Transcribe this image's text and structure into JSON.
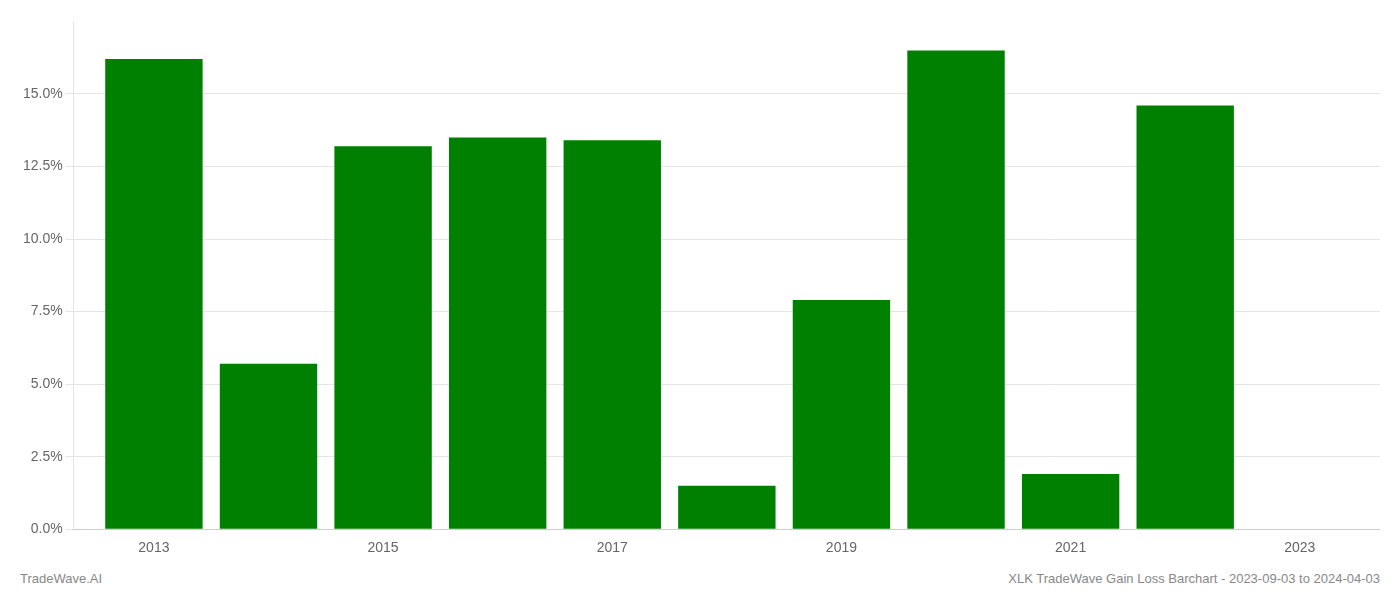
{
  "chart_data": {
    "type": "bar",
    "x": [
      2013,
      2014,
      2015,
      2016,
      2017,
      2018,
      2019,
      2020,
      2021,
      2022,
      2023
    ],
    "values": [
      0.162,
      0.057,
      0.132,
      0.135,
      0.134,
      0.015,
      0.079,
      0.165,
      0.019,
      0.146,
      0.0
    ],
    "color": "#008000",
    "xlim": [
      2012.3,
      2023.7
    ],
    "xticks": [
      2013,
      2015,
      2017,
      2019,
      2021,
      2023
    ],
    "ylim": [
      0,
      0.175
    ],
    "yticks": [
      {
        "value": 0.0,
        "label": "0.0%"
      },
      {
        "value": 0.025,
        "label": "2.5%"
      },
      {
        "value": 0.05,
        "label": "5.0%"
      },
      {
        "value": 0.075,
        "label": "7.5%"
      },
      {
        "value": 0.1,
        "label": "10.0%"
      },
      {
        "value": 0.125,
        "label": "12.5%"
      },
      {
        "value": 0.15,
        "label": "15.0%"
      }
    ],
    "grid": true,
    "annotations": [
      "TradeWave.AI",
      "XLK TradeWave Gain Loss Barchart - 2023-09-03 to 2024-04-03"
    ]
  }
}
